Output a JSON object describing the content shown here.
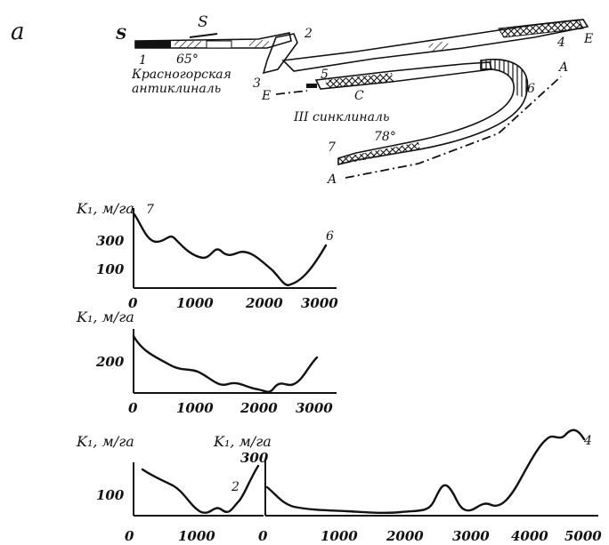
{
  "panel_label": "a",
  "map": {
    "labels": {
      "s_left": "S",
      "s_line": "S",
      "n1": "1",
      "n2": "2",
      "n3": "3",
      "n4": "4",
      "n5": "5",
      "n6": "6",
      "n7": "7",
      "e_right": "E",
      "e_left": "E",
      "a_right": "A",
      "a_left": "A",
      "dip_1": "65°",
      "dip_2": "78°",
      "c": "C",
      "anticline_1": "Красногорская",
      "anticline_2": "антиклиналь",
      "syncline": "III синклиналь"
    }
  },
  "charts": {
    "top": {
      "ylabel": "K₁, м/га",
      "start_label": "7",
      "end_label": "6",
      "yticks": [
        "300",
        "100"
      ],
      "xticks": [
        "0",
        "1000",
        "2000",
        "3000"
      ]
    },
    "middle": {
      "ylabel": "K₁, м/га",
      "yticks": [
        "200"
      ],
      "xticks": [
        "0",
        "1000",
        "2000",
        "3000"
      ]
    },
    "bottom_left": {
      "ylabel": "K₁, м/га",
      "yticks": [
        "100"
      ],
      "end_label": "2",
      "xticks": [
        "0",
        "1000",
        "0"
      ]
    },
    "bottom_right": {
      "ylabel": "K₁, м/га",
      "ytick_top": "300",
      "end_label": "4",
      "xticks": [
        "1000",
        "2000",
        "3000",
        "4000",
        "5000"
      ]
    }
  }
}
